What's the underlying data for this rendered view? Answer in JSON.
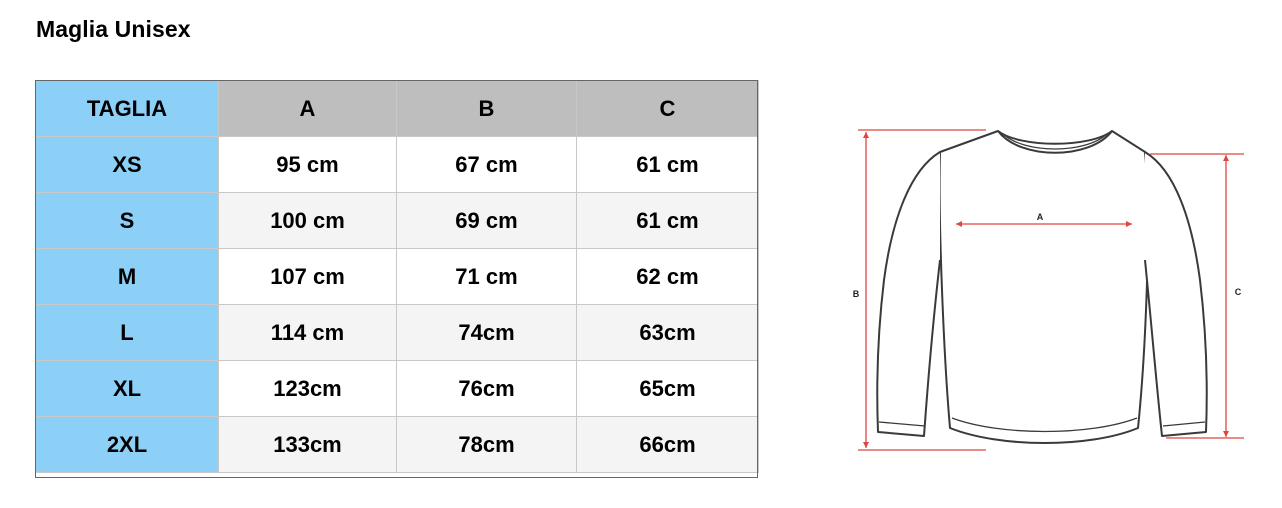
{
  "title": "Maglia Unisex",
  "table": {
    "headers": [
      "TAGLIA",
      "A",
      "B",
      "C"
    ],
    "rows": [
      {
        "size": "XS",
        "a": "95 cm",
        "b": "67 cm",
        "c": "61 cm"
      },
      {
        "size": "S",
        "a": "100 cm",
        "b": "69 cm",
        "c": "61 cm"
      },
      {
        "size": "M",
        "a": "107 cm",
        "b": "71 cm",
        "c": "62 cm"
      },
      {
        "size": "L",
        "a": "114 cm",
        "b": "74cm",
        "c": "63cm"
      },
      {
        "size": "XL",
        "a": "123cm",
        "b": "76cm",
        "c": "65cm"
      },
      {
        "size": "2XL",
        "a": "133cm",
        "b": "78cm",
        "c": "66cm"
      }
    ]
  },
  "diagram": {
    "label_a": "A",
    "label_b": "B",
    "label_c": "C",
    "measure_color": "#e0443e",
    "outline_color": "#3a3a3a"
  },
  "colors": {
    "size_column_bg": "#8dd0f7",
    "header_bg": "#bdbebd",
    "alt_row_bg": "#f4f4f4"
  }
}
